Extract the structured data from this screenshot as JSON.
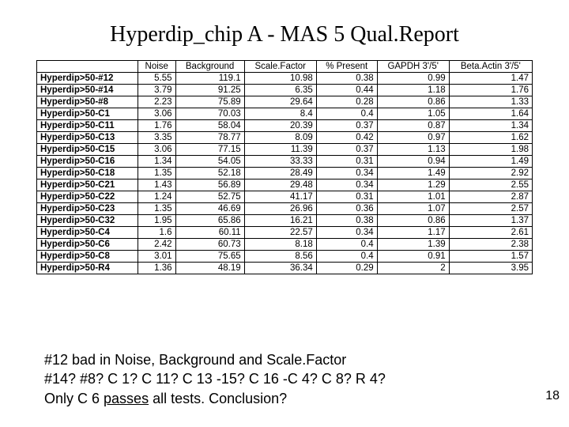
{
  "title": "Hyperdip_chip A - MAS 5 Qual.Report",
  "table": {
    "columns": [
      "",
      "Noise",
      "Background",
      "Scale.Factor",
      "% Present",
      "GAPDH 3'/5'",
      "Beta.Actin 3'/5'"
    ],
    "rows": [
      [
        "Hyperdip>50-#12",
        "5.55",
        "119.1",
        "10.98",
        "0.38",
        "0.99",
        "1.47"
      ],
      [
        "Hyperdip>50-#14",
        "3.79",
        "91.25",
        "6.35",
        "0.44",
        "1.18",
        "1.76"
      ],
      [
        "Hyperdip>50-#8",
        "2.23",
        "75.89",
        "29.64",
        "0.28",
        "0.86",
        "1.33"
      ],
      [
        "Hyperdip>50-C1",
        "3.06",
        "70.03",
        "8.4",
        "0.4",
        "1.05",
        "1.64"
      ],
      [
        "Hyperdip>50-C11",
        "1.76",
        "58.04",
        "20.39",
        "0.37",
        "0.87",
        "1.34"
      ],
      [
        "Hyperdip>50-C13",
        "3.35",
        "78.77",
        "8.09",
        "0.42",
        "0.97",
        "1.62"
      ],
      [
        "Hyperdip>50-C15",
        "3.06",
        "77.15",
        "11.39",
        "0.37",
        "1.13",
        "1.98"
      ],
      [
        "Hyperdip>50-C16",
        "1.34",
        "54.05",
        "33.33",
        "0.31",
        "0.94",
        "1.49"
      ],
      [
        "Hyperdip>50-C18",
        "1.35",
        "52.18",
        "28.49",
        "0.34",
        "1.49",
        "2.92"
      ],
      [
        "Hyperdip>50-C21",
        "1.43",
        "56.89",
        "29.48",
        "0.34",
        "1.29",
        "2.55"
      ],
      [
        "Hyperdip>50-C22",
        "1.24",
        "52.75",
        "41.17",
        "0.31",
        "1.01",
        "2.87"
      ],
      [
        "Hyperdip>50-C23",
        "1.35",
        "46.69",
        "26.96",
        "0.36",
        "1.07",
        "2.57"
      ],
      [
        "Hyperdip>50-C32",
        "1.95",
        "65.86",
        "16.21",
        "0.38",
        "0.86",
        "1.37"
      ],
      [
        "Hyperdip>50-C4",
        "1.6",
        "60.11",
        "22.57",
        "0.34",
        "1.17",
        "2.61"
      ],
      [
        "Hyperdip>50-C6",
        "2.42",
        "60.73",
        "8.18",
        "0.4",
        "1.39",
        "2.38"
      ],
      [
        "Hyperdip>50-C8",
        "3.01",
        "75.65",
        "8.56",
        "0.4",
        "0.91",
        "1.57"
      ],
      [
        "Hyperdip>50-R4",
        "1.36",
        "48.19",
        "36.34",
        "0.29",
        "2",
        "3.95"
      ]
    ],
    "col_align": [
      "left",
      "right",
      "right",
      "right",
      "right",
      "right",
      "right"
    ]
  },
  "notes": {
    "line1": "#12 bad in Noise, Background and Scale.Factor",
    "line2": "#14?  #8?  C 1? C 11? C 13 -15? C 16 -C 4? C 8? R 4?",
    "line3a": " Only C 6 ",
    "line3b": "passes",
    "line3c": " all tests. Conclusion?"
  },
  "page_number": "18",
  "colors": {
    "background": "#ffffff",
    "text": "#000000",
    "border": "#000000"
  },
  "fonts": {
    "title_family": "Times New Roman",
    "title_size_pt": 28,
    "table_size_pt": 11.5,
    "notes_size_pt": 18
  }
}
